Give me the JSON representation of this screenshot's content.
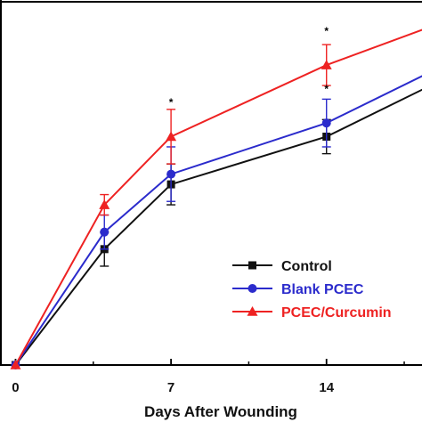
{
  "chart_data": {
    "type": "line",
    "title": "",
    "xlabel": "Days After Wounding",
    "ylabel": "",
    "x_ticks": [
      "0",
      "7",
      "14"
    ],
    "xlim": [
      -0.7,
      18.3
    ],
    "ylim": [
      0,
      105
    ],
    "series": [
      {
        "name": "Control",
        "color": "#111111",
        "marker": "square",
        "x": [
          0,
          4,
          7,
          14,
          19
        ],
        "y": [
          0,
          34,
          53,
          67,
          83
        ],
        "err": [
          0,
          5,
          6,
          5,
          0
        ]
      },
      {
        "name": "Blank PCEC",
        "color": "#2b2bcc",
        "marker": "circle",
        "x": [
          0,
          4,
          7,
          14,
          19
        ],
        "y": [
          0,
          39,
          56,
          71,
          87
        ],
        "err": [
          0,
          5,
          8,
          7,
          0
        ]
      },
      {
        "name": "PCEC/Curcumin",
        "color": "#ee2222",
        "marker": "triangle",
        "x": [
          0,
          4,
          7,
          14,
          19
        ],
        "y": [
          0,
          47,
          67,
          88,
          100
        ],
        "err": [
          0,
          3,
          8,
          6,
          0
        ]
      }
    ],
    "annotations": [
      {
        "text": "*",
        "x": 7,
        "y": 77
      },
      {
        "text": "*",
        "x": 14,
        "y": 98
      },
      {
        "text": "*",
        "x": 14,
        "y": 81
      }
    ],
    "legend_position": "lower-right",
    "grid": false
  }
}
